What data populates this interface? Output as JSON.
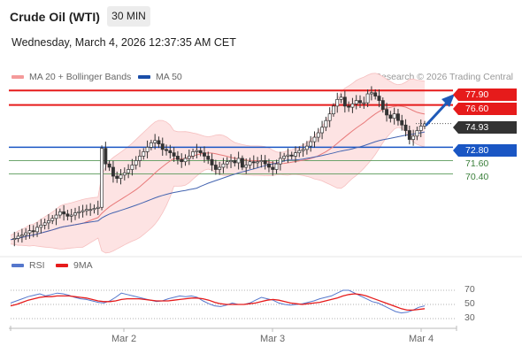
{
  "header": {
    "title": "Crude Oil (WTI)",
    "timeframe": "30 MIN",
    "datetime": "Wednesday, March 4, 2026 12:37:35 AM CET"
  },
  "legend": {
    "ma20_label": "MA 20 + Bollinger Bands",
    "ma50_label": "MA 50",
    "credit": "Research © 2026 Trading Central"
  },
  "colors": {
    "resistance": "#e61b1b",
    "support_line": "#1a56c4",
    "support_green": "#5a9a5a",
    "candle_up": "#ffffff",
    "candle_down": "#333333",
    "ma20": "#e87a7a",
    "ma50": "#4464b0",
    "bollinger_fill": "#fde3e3",
    "rsi": "#5577cc",
    "rsi_ma": "#e61b1b"
  },
  "levels": {
    "r2": "77.90",
    "r1": "76.60",
    "current": "74.93",
    "pivot": "72.80",
    "s1": "71.60",
    "s2": "70.40"
  },
  "rsi_panel": {
    "rsi_label": "RSI",
    "ma_label": "9MA",
    "ticks": [
      "70",
      "50",
      "30"
    ]
  },
  "x_axis": {
    "labels": [
      "Mar 2",
      "Mar 3",
      "Mar 4"
    ]
  },
  "chart_data": {
    "type": "candlestick",
    "y_range": [
      63.6,
      78.4
    ],
    "price_series": {
      "name": "Crude Oil (WTI)",
      "close_path": [
        64.5,
        64.6,
        64.8,
        64.9,
        65.1,
        65.3,
        65.2,
        65.6,
        65.8,
        66.0,
        66.2,
        66.4,
        66.7,
        67.0,
        66.8,
        66.6,
        66.7,
        66.9,
        67.0,
        67.1,
        67.2,
        67.2,
        67.3,
        67.4,
        72.7,
        71.3,
        71.0,
        70.2,
        70.0,
        70.3,
        70.5,
        70.8,
        71.2,
        71.6,
        72.0,
        72.4,
        72.8,
        73.2,
        73.4,
        73.1,
        72.6,
        72.5,
        72.3,
        72.0,
        71.7,
        71.5,
        71.8,
        72.0,
        72.4,
        72.5,
        72.3,
        72.0,
        71.7,
        71.2,
        70.8,
        71.0,
        71.3,
        71.5,
        71.6,
        71.4,
        71.8,
        71.0,
        71.2,
        71.5,
        71.4,
        71.5,
        71.6,
        71.3,
        71.0,
        70.8,
        71.3,
        71.8,
        72.0,
        72.1,
        72.0,
        72.3,
        72.5,
        72.6,
        72.9,
        73.3,
        73.7,
        74.1,
        74.6,
        75.2,
        75.8,
        76.5,
        77.1,
        77.3,
        76.5,
        76.4,
        76.7,
        77.0,
        76.8,
        76.8,
        77.6,
        77.7,
        77.4,
        77.0,
        76.2,
        75.7,
        75.4,
        75.8,
        75.2,
        74.8,
        74.3,
        73.5,
        73.8,
        74.3,
        74.7,
        74.9
      ]
    },
    "ma20": "derived from price_series",
    "ma50": "derived from price_series",
    "horizontal_levels": [
      {
        "value": 77.9,
        "kind": "resistance"
      },
      {
        "value": 76.6,
        "kind": "resistance"
      },
      {
        "value": 74.93,
        "kind": "last"
      },
      {
        "value": 72.8,
        "kind": "pivot"
      },
      {
        "value": 71.6,
        "kind": "support"
      },
      {
        "value": 70.4,
        "kind": "support"
      }
    ],
    "rsi": {
      "range": [
        0,
        100
      ],
      "ticks": [
        70,
        50,
        30
      ],
      "rsi_values": [
        52,
        55,
        58,
        61,
        63,
        65,
        62,
        64,
        66,
        65,
        63,
        60,
        58,
        57,
        55,
        53,
        52,
        55,
        60,
        66,
        64,
        62,
        60,
        58,
        56,
        54,
        55,
        58,
        60,
        62,
        61,
        62,
        60,
        55,
        51,
        48,
        47,
        49,
        52,
        50,
        50,
        52,
        56,
        60,
        58,
        56,
        52,
        50,
        49,
        50,
        51,
        53,
        55,
        58,
        60,
        62,
        66,
        70,
        70,
        66,
        62,
        58,
        54,
        52,
        48,
        44,
        40,
        38,
        39,
        42,
        46,
        48
      ],
      "ma_values": [
        48,
        50,
        53,
        56,
        58,
        60,
        61,
        61,
        62,
        62,
        62,
        61,
        60,
        59,
        57,
        55,
        54,
        54,
        55,
        57,
        58,
        58,
        58,
        57,
        56,
        55,
        55,
        55,
        56,
        57,
        58,
        59,
        59,
        58,
        56,
        53,
        51,
        50,
        50,
        50,
        50,
        51,
        52,
        54,
        56,
        57,
        56,
        54,
        52,
        51,
        50,
        51,
        52,
        53,
        55,
        57,
        59,
        62,
        64,
        65,
        64,
        62,
        59,
        56,
        53,
        50,
        47,
        44,
        42,
        42,
        43,
        44
      ]
    }
  }
}
